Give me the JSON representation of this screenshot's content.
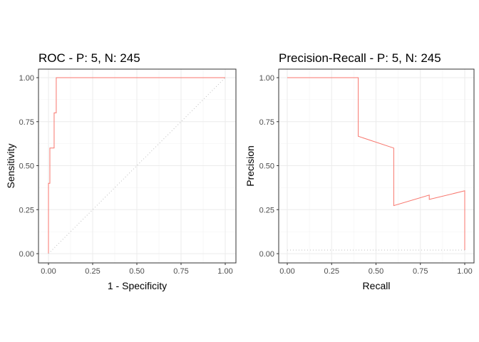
{
  "chart_data": [
    {
      "type": "line",
      "title": "ROC - P: 5, N: 245",
      "xlabel": "1 - Specificity",
      "ylabel": "Sensitivity",
      "xlim": [
        0,
        1
      ],
      "ylim": [
        0,
        1
      ],
      "x_ticks": [
        "0.00",
        "0.25",
        "0.50",
        "0.75",
        "1.00"
      ],
      "y_ticks": [
        "0.00",
        "0.25",
        "0.50",
        "0.75",
        "1.00"
      ],
      "grid": true,
      "legend": "none",
      "series": [
        {
          "color": "#F8766D",
          "style": "solid",
          "points": [
            [
              0,
              0
            ],
            [
              0,
              0.4
            ],
            [
              0.008,
              0.4
            ],
            [
              0.008,
              0.6
            ],
            [
              0.032,
              0.6
            ],
            [
              0.032,
              0.8
            ],
            [
              0.044,
              0.8
            ],
            [
              0.044,
              1.0
            ],
            [
              1.0,
              1.0
            ]
          ]
        },
        {
          "color": "#bdbdbd",
          "style": "dotted",
          "points": [
            [
              0,
              0
            ],
            [
              1,
              1
            ]
          ]
        }
      ]
    },
    {
      "type": "line",
      "title": "Precision-Recall - P: 5, N: 245",
      "xlabel": "Recall",
      "ylabel": "Precision",
      "xlim": [
        0,
        1
      ],
      "ylim": [
        0,
        1
      ],
      "x_ticks": [
        "0.00",
        "0.25",
        "0.50",
        "0.75",
        "1.00"
      ],
      "y_ticks": [
        "0.00",
        "0.25",
        "0.50",
        "0.75",
        "1.00"
      ],
      "grid": true,
      "legend": "none",
      "series": [
        {
          "color": "#F8766D",
          "style": "solid",
          "points": [
            [
              0,
              1.0
            ],
            [
              0.4,
              1.0
            ],
            [
              0.4,
              0.667
            ],
            [
              0.6,
              0.6
            ],
            [
              0.6,
              0.273
            ],
            [
              0.8,
              0.333
            ],
            [
              0.8,
              0.308
            ],
            [
              1.0,
              0.357
            ],
            [
              1.0,
              0.02
            ]
          ]
        },
        {
          "color": "#bdbdbd",
          "style": "dotted",
          "points": [
            [
              0,
              0.02
            ],
            [
              1,
              0.02
            ]
          ]
        }
      ]
    }
  ]
}
